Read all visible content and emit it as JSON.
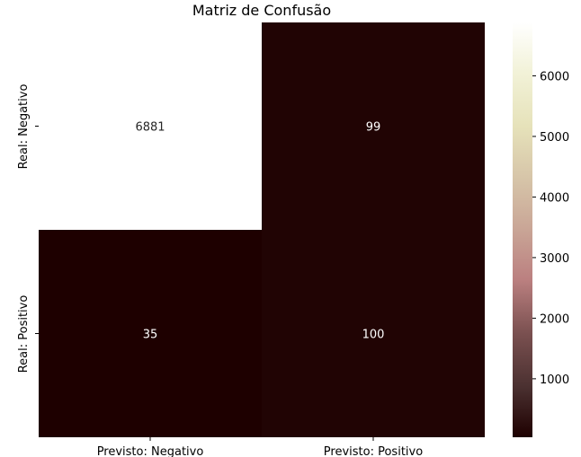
{
  "chart_data": {
    "type": "heatmap",
    "title": "Matriz de Confusão",
    "xlabel": "",
    "ylabel": "",
    "x_categories": [
      "Previsto: Negativo",
      "Previsto: Positivo"
    ],
    "y_categories": [
      "Real: Negativo",
      "Real: Positivo"
    ],
    "values": [
      [
        6881,
        99
      ],
      [
        35,
        100
      ]
    ],
    "colormap": "pink",
    "colorbar": {
      "vmin": 35,
      "vmax": 6881,
      "ticks": [
        1000,
        2000,
        3000,
        4000,
        5000,
        6000
      ]
    },
    "text_colors": {
      "on_light": "#262626",
      "on_dark": "#ffffff"
    }
  }
}
